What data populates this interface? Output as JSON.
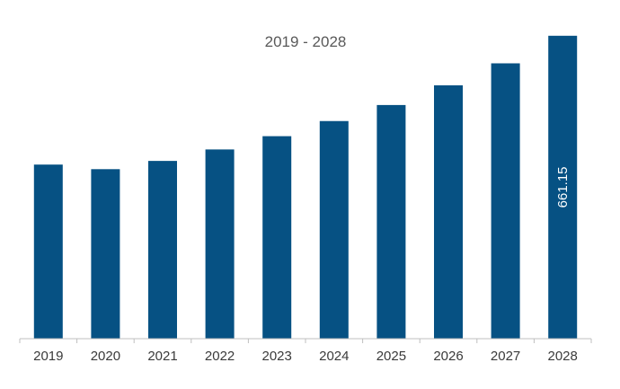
{
  "chart_data": {
    "type": "bar",
    "title": "2019 - 2028",
    "xlabel": "",
    "ylabel": "",
    "categories": [
      "2019",
      "2020",
      "2021",
      "2022",
      "2023",
      "2024",
      "2025",
      "2026",
      "2027",
      "2028"
    ],
    "values": [
      380,
      370,
      388,
      413,
      442,
      475,
      510,
      553,
      601,
      661.15
    ],
    "data_labels": [
      "",
      "",
      "",
      "",
      "",
      "",
      "",
      "",
      "",
      "661.15"
    ],
    "ylim": [
      0,
      700
    ],
    "grid": false,
    "legend": "none",
    "colors": {
      "bar": "#065183",
      "axis": "#bfbfbf"
    }
  }
}
